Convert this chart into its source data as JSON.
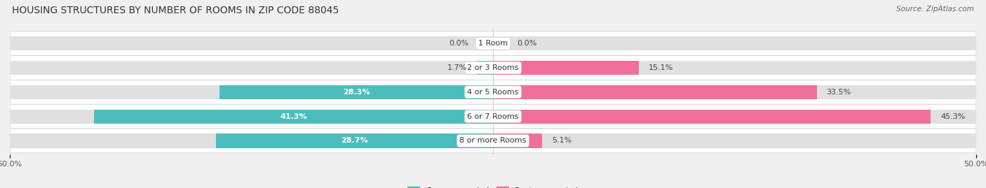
{
  "title": "HOUSING STRUCTURES BY NUMBER OF ROOMS IN ZIP CODE 88045",
  "source": "Source: ZipAtlas.com",
  "categories": [
    "1 Room",
    "2 or 3 Rooms",
    "4 or 5 Rooms",
    "6 or 7 Rooms",
    "8 or more Rooms"
  ],
  "owner_values": [
    0.0,
    1.7,
    28.3,
    41.3,
    28.7
  ],
  "renter_values": [
    0.0,
    15.1,
    33.5,
    45.3,
    5.1
  ],
  "owner_color": "#4BBDBD",
  "renter_color": "#F07098",
  "bar_height": 0.58,
  "xlim": [
    -50,
    50
  ],
  "background_color": "#f0f0f0",
  "bar_bg_color": "#e0e0e0",
  "row_bg_color": "#f8f8f8",
  "title_fontsize": 10,
  "source_fontsize": 7.5,
  "label_fontsize": 8,
  "legend_fontsize": 8,
  "tick_fontsize": 8
}
